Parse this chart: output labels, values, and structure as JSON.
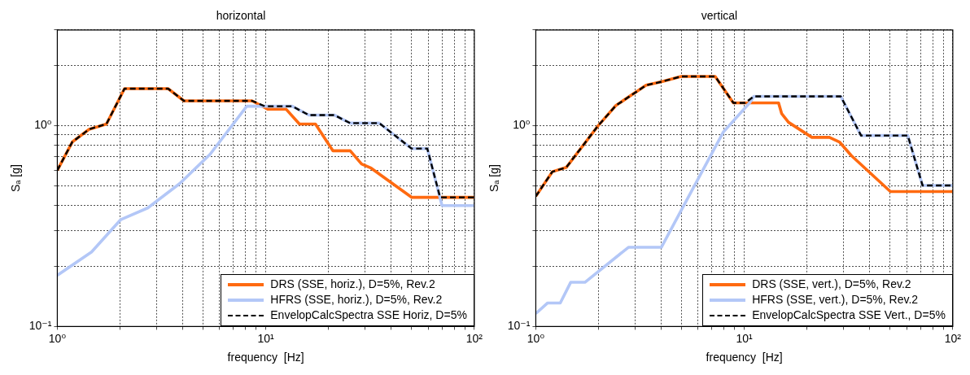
{
  "chart_data": [
    {
      "type": "line",
      "title": "horizontal",
      "xlabel": "frequency  [Hz]",
      "ylabel": "Sₐ [g]",
      "log": "xy",
      "grid": true,
      "legend": "bottom right",
      "xlim": [
        1,
        100
      ],
      "ylim": [
        0.1,
        3
      ],
      "xticks": [
        {
          "value": 1,
          "label": "10⁰"
        },
        {
          "value": 2,
          "label": null
        },
        {
          "value": 3,
          "label": null
        },
        {
          "value": 4,
          "label": null
        },
        {
          "value": 5,
          "label": null
        },
        {
          "value": 6,
          "label": null
        },
        {
          "value": 7,
          "label": null
        },
        {
          "value": 8,
          "label": null
        },
        {
          "value": 9,
          "label": null
        },
        {
          "value": 10,
          "label": "10¹"
        },
        {
          "value": 20,
          "label": null
        },
        {
          "value": 30,
          "label": null
        },
        {
          "value": 40,
          "label": null
        },
        {
          "value": 50,
          "label": null
        },
        {
          "value": 60,
          "label": null
        },
        {
          "value": 70,
          "label": null
        },
        {
          "value": 80,
          "label": null
        },
        {
          "value": 90,
          "label": null
        },
        {
          "value": 100,
          "label": "10²"
        }
      ],
      "yticks": [
        {
          "value": 0.1,
          "label": "10⁻¹"
        },
        {
          "value": 0.2,
          "label": null
        },
        {
          "value": 0.3,
          "label": null
        },
        {
          "value": 0.4,
          "label": null
        },
        {
          "value": 0.5,
          "label": null
        },
        {
          "value": 0.6,
          "label": null
        },
        {
          "value": 0.7,
          "label": null
        },
        {
          "value": 0.8,
          "label": null
        },
        {
          "value": 0.9,
          "label": null
        },
        {
          "value": 1,
          "label": "10⁰"
        },
        {
          "value": 2,
          "label": null
        },
        {
          "value": 3,
          "label": null
        }
      ],
      "series": [
        {
          "name": "DRS (SSE, horiz.), D=5%, Rev.2",
          "color": "#ff6a10",
          "line_style": "solid",
          "x": [
            1,
            1.18,
            1.42,
            1.72,
            2.1,
            3.4,
            4.05,
            8.6,
            10.2,
            12.5,
            14.5,
            17.3,
            21,
            25.4,
            28.8,
            32,
            50,
            100
          ],
          "values": [
            0.6,
            0.83,
            0.96,
            1.02,
            1.53,
            1.53,
            1.33,
            1.33,
            1.21,
            1.21,
            1.02,
            1.02,
            0.75,
            0.75,
            0.645,
            0.615,
            0.44,
            0.44
          ]
        },
        {
          "name": "HFRS (SSE, horiz.), D=5%, Rev.2",
          "color": "#b3c7f7",
          "line_style": "solid",
          "x": [
            1,
            1.46,
            2.01,
            2.72,
            3.86,
            5.4,
            8.1,
            10,
            13.4,
            16.1,
            21.3,
            25.4,
            35,
            50,
            59.5,
            70,
            100
          ],
          "values": [
            0.18,
            0.235,
            0.34,
            0.39,
            0.515,
            0.72,
            1.25,
            1.25,
            1.25,
            1.13,
            1.13,
            1.03,
            1.03,
            0.77,
            0.77,
            0.4,
            0.4
          ]
        },
        {
          "name": "EnvelopCalcSpectra SSE Horiz, D=5%",
          "color": "#000000",
          "line_style": "dashed",
          "x": [
            1,
            1.18,
            1.42,
            1.72,
            2.1,
            3.4,
            4.05,
            8.6,
            9.9,
            13.4,
            16.1,
            21.3,
            25.4,
            35,
            50,
            59.5,
            68.5,
            100
          ],
          "values": [
            0.6,
            0.83,
            0.96,
            1.02,
            1.53,
            1.53,
            1.33,
            1.33,
            1.25,
            1.25,
            1.13,
            1.13,
            1.03,
            1.03,
            0.77,
            0.77,
            0.44,
            0.44
          ]
        }
      ]
    },
    {
      "type": "line",
      "title": "vertical",
      "xlabel": "frequency  [Hz]",
      "ylabel": "Sₐ [g]",
      "log": "xy",
      "grid": true,
      "legend": "bottom right",
      "xlim": [
        1,
        100
      ],
      "ylim": [
        0.1,
        3
      ],
      "xticks": [
        {
          "value": 1,
          "label": "10⁰"
        },
        {
          "value": 2,
          "label": null
        },
        {
          "value": 3,
          "label": null
        },
        {
          "value": 4,
          "label": null
        },
        {
          "value": 5,
          "label": null
        },
        {
          "value": 6,
          "label": null
        },
        {
          "value": 7,
          "label": null
        },
        {
          "value": 8,
          "label": null
        },
        {
          "value": 9,
          "label": null
        },
        {
          "value": 10,
          "label": "10¹"
        },
        {
          "value": 20,
          "label": null
        },
        {
          "value": 30,
          "label": null
        },
        {
          "value": 40,
          "label": null
        },
        {
          "value": 50,
          "label": null
        },
        {
          "value": 60,
          "label": null
        },
        {
          "value": 70,
          "label": null
        },
        {
          "value": 80,
          "label": null
        },
        {
          "value": 90,
          "label": null
        },
        {
          "value": 100,
          "label": "10²"
        }
      ],
      "yticks": [
        {
          "value": 0.1,
          "label": "10⁻¹"
        },
        {
          "value": 0.2,
          "label": null
        },
        {
          "value": 0.3,
          "label": null
        },
        {
          "value": 0.4,
          "label": null
        },
        {
          "value": 0.5,
          "label": null
        },
        {
          "value": 0.6,
          "label": null
        },
        {
          "value": 0.7,
          "label": null
        },
        {
          "value": 0.8,
          "label": null
        },
        {
          "value": 0.9,
          "label": null
        },
        {
          "value": 1,
          "label": "10⁰"
        },
        {
          "value": 2,
          "label": null
        },
        {
          "value": 3,
          "label": null
        }
      ],
      "series": [
        {
          "name": "DRS (SSE, vert.), D=5%, Rev.2",
          "color": "#ff6a10",
          "line_style": "solid",
          "x": [
            1,
            1.2,
            1.4,
            1.99,
            2.42,
            3.38,
            4.04,
            4.97,
            7.25,
            8.86,
            14.6,
            15.1,
            16.3,
            21.1,
            25.6,
            28.6,
            32.6,
            50.2,
            100
          ],
          "values": [
            0.445,
            0.59,
            0.62,
            1.0,
            1.26,
            1.59,
            1.66,
            1.76,
            1.76,
            1.3,
            1.3,
            1.15,
            1.04,
            0.875,
            0.875,
            0.83,
            0.71,
            0.47,
            0.47
          ]
        },
        {
          "name": "HFRS (SSE, vert.), D=5%, Rev.2",
          "color": "#b3c7f7",
          "line_style": "solid",
          "x": [
            1,
            1.14,
            1.31,
            1.47,
            1.72,
            2.78,
            4.0,
            7.93,
            10.6,
            11.1,
            29,
            36.3,
            60.8,
            71.6,
            100
          ],
          "values": [
            0.116,
            0.131,
            0.131,
            0.166,
            0.166,
            0.248,
            0.248,
            0.93,
            1.3,
            1.4,
            1.4,
            0.894,
            0.894,
            0.504,
            0.504
          ]
        },
        {
          "name": "EnvelopCalcSpectra SSE Vert., D=5%",
          "color": "#000000",
          "line_style": "dashed",
          "x": [
            1,
            1.2,
            1.4,
            1.99,
            2.42,
            3.38,
            4.04,
            4.97,
            7.25,
            8.86,
            10.1,
            11.1,
            29,
            36.3,
            60.8,
            71.6,
            100
          ],
          "values": [
            0.445,
            0.59,
            0.62,
            1.0,
            1.26,
            1.59,
            1.66,
            1.76,
            1.76,
            1.3,
            1.3,
            1.4,
            1.4,
            0.894,
            0.894,
            0.504,
            0.504
          ]
        }
      ]
    }
  ]
}
